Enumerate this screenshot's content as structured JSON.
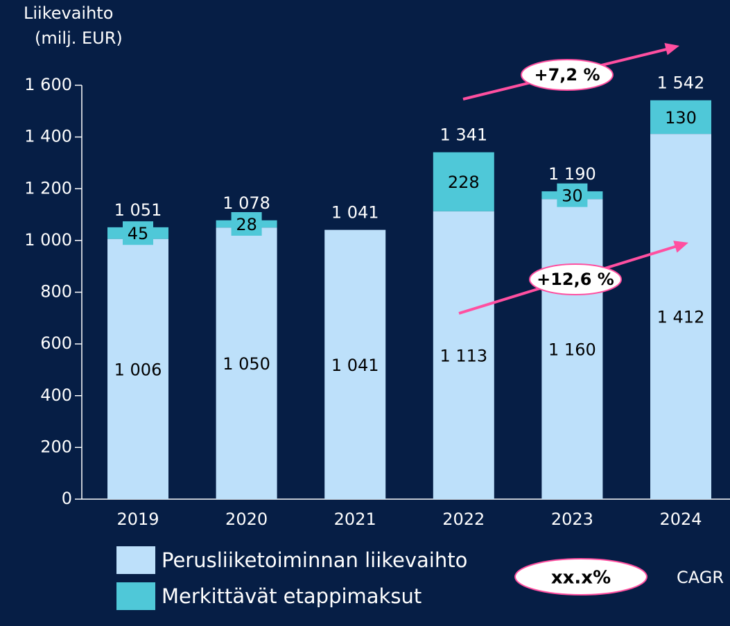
{
  "chart_data": {
    "type": "stacked_bar",
    "ylabel": [
      "Liikevaihto",
      "(milj. EUR)"
    ],
    "categories": [
      "2019",
      "2020",
      "2021",
      "2022",
      "2023",
      "2024"
    ],
    "series": [
      {
        "name": "Perusliiketoiminnan liikevaihto",
        "color": "#bde0fa",
        "values": [
          1006,
          1050,
          1041,
          1113,
          1160,
          1412
        ],
        "value_labels": [
          "1 006",
          "1 050",
          "1 041",
          "1 113",
          "1 160",
          "1 412"
        ]
      },
      {
        "name": "Merkittävät etappimaksut",
        "color": "#4fc8d8",
        "values": [
          45,
          28,
          null,
          228,
          30,
          130
        ],
        "value_labels": [
          "45",
          "28",
          null,
          "228",
          "30",
          "130"
        ]
      }
    ],
    "totals": [
      1051,
      1078,
      1041,
      1341,
      1190,
      1542
    ],
    "total_labels": [
      "1 051",
      "1 078",
      "1 041",
      "1 341",
      "1 190",
      "1 542"
    ],
    "ylim": [
      0,
      1600
    ],
    "yticks": [
      0,
      200,
      400,
      600,
      800,
      {
        "value": 1000,
        "label": "1 000"
      },
      {
        "value": 1200,
        "label": "1 200"
      },
      {
        "value": 1400,
        "label": "1 400"
      },
      {
        "value": 1600,
        "label": "1 600"
      }
    ],
    "annotations": [
      "+7,2 %",
      "+12,6 %"
    ],
    "cagr_example": "xx.x%",
    "cagr_label": "CAGR"
  }
}
